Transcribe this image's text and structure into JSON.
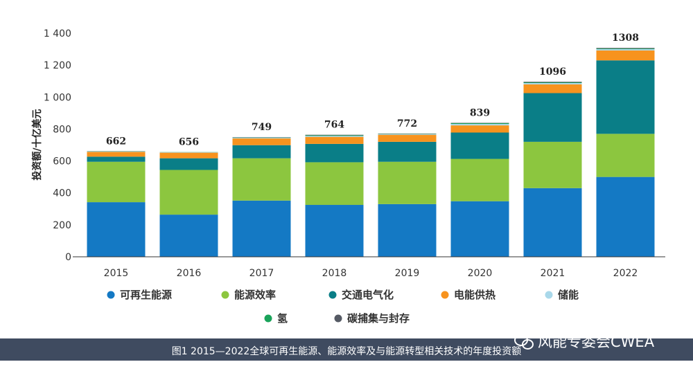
{
  "chart_data": {
    "type": "bar",
    "stacked": true,
    "ylabel": "投资额/十亿美元",
    "ylim": [
      0,
      1400
    ],
    "yticks": [
      "0",
      "200",
      "400",
      "600",
      "800",
      "1 000",
      "1 200",
      "1 400"
    ],
    "ytick_values": [
      0,
      200,
      400,
      600,
      800,
      1000,
      1200,
      1400
    ],
    "categories": [
      "2015",
      "2016",
      "2017",
      "2018",
      "2019",
      "2020",
      "2021",
      "2022"
    ],
    "totals": [
      "662",
      "656",
      "749",
      "764",
      "772",
      "839",
      "1096",
      "1308"
    ],
    "series": [
      {
        "name": "可再生能源",
        "color": "#1479c4",
        "values": [
          342,
          264,
          352,
          325,
          330,
          348,
          430,
          500
        ]
      },
      {
        "name": "能源效率",
        "color": "#8cc63f",
        "values": [
          253,
          280,
          265,
          267,
          265,
          265,
          290,
          270
        ]
      },
      {
        "name": "交通电气化",
        "color": "#0a7e87",
        "values": [
          32,
          73,
          82,
          115,
          125,
          165,
          305,
          460
        ]
      },
      {
        "name": "电能供热",
        "color": "#f7931e",
        "values": [
          30,
          35,
          42,
          44,
          44,
          45,
          55,
          62
        ]
      },
      {
        "name": "储能",
        "color": "#a9d8ea",
        "values": [
          3,
          3,
          4,
          6,
          4,
          9,
          8,
          8
        ]
      },
      {
        "name": "氢",
        "color": "#1aa35a",
        "values": [
          1,
          1,
          2,
          4,
          2,
          5,
          4,
          4
        ]
      },
      {
        "name": "碳捕集与封存",
        "color": "#555a64",
        "values": [
          1,
          0,
          2,
          3,
          2,
          2,
          4,
          4
        ]
      }
    ],
    "legend": "bottom",
    "grid": false
  },
  "caption": "图1 2015—2022全球可再生能源、能源效率及与能源转型相关技术的年度投资额",
  "watermark": {
    "text": "风能专委会CWEA",
    "icon": "wechat-icon"
  }
}
